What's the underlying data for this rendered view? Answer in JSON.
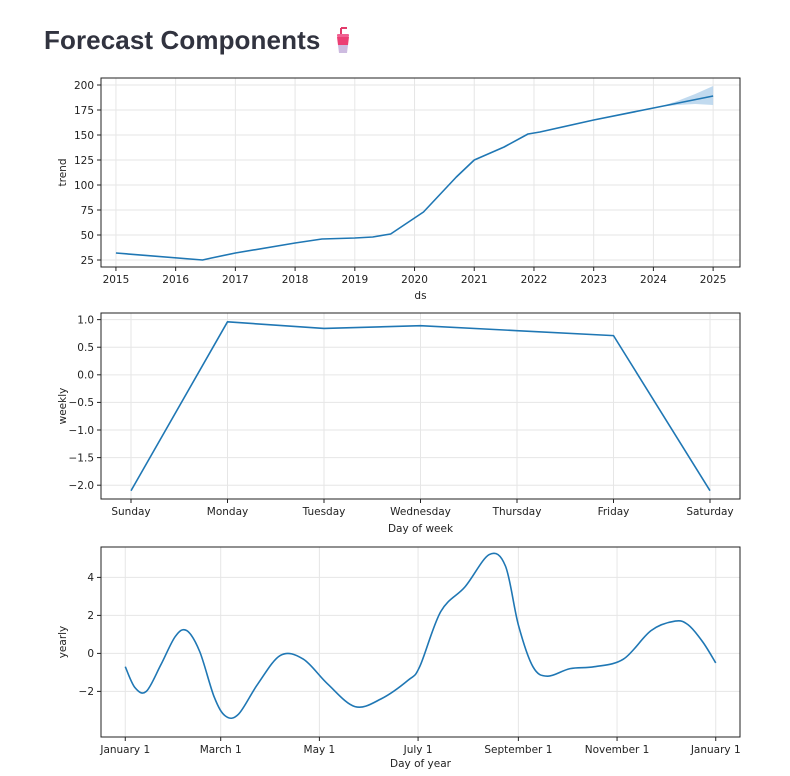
{
  "page": {
    "title": "Forecast Components",
    "icon": "drink-cup-icon"
  },
  "colors": {
    "line": "#1f77b4",
    "band": "#b6d4ec",
    "grid": "#e6e6e6",
    "axis": "#222222",
    "title": "#31333f"
  },
  "chart_data": [
    {
      "type": "line",
      "ylabel": "trend",
      "xlabel": "ds",
      "xlim": [
        2014.75,
        2025.45
      ],
      "ylim": [
        18,
        207
      ],
      "grid": true,
      "xticks": [
        2015,
        2016,
        2017,
        2018,
        2019,
        2020,
        2021,
        2022,
        2023,
        2024,
        2025
      ],
      "xtick_labels": [
        "2015",
        "2016",
        "2017",
        "2018",
        "2019",
        "2020",
        "2021",
        "2022",
        "2023",
        "2024",
        "2025"
      ],
      "yticks": [
        25,
        50,
        75,
        100,
        125,
        150,
        175,
        200
      ],
      "ytick_labels": [
        "25",
        "50",
        "75",
        "100",
        "125",
        "150",
        "175",
        "200"
      ],
      "series": [
        {
          "x": [
            2015.0,
            2016.45,
            2016.6,
            2017.0,
            2018.0,
            2018.45,
            2019.0,
            2019.3,
            2019.6,
            2020.15,
            2020.7,
            2021.0,
            2021.5,
            2021.9,
            2022.1,
            2023.0,
            2024.0,
            2024.5,
            2025.0
          ],
          "y": [
            32,
            25,
            27,
            32,
            42,
            46,
            47,
            48,
            51,
            73,
            108,
            125,
            138,
            151,
            153,
            165,
            177,
            183,
            189
          ]
        }
      ],
      "uncertainty_band": {
        "x": [
          2024.1,
          2024.4,
          2024.7,
          2025.0
        ],
        "lower": [
          178,
          180,
          181,
          180
        ],
        "upper": [
          178,
          184,
          191,
          199
        ]
      }
    },
    {
      "type": "line",
      "ylabel": "weekly",
      "xlabel": "Day of week",
      "ylim": [
        -2.25,
        1.12
      ],
      "grid": true,
      "categories": [
        "Sunday",
        "Monday",
        "Tuesday",
        "Wednesday",
        "Thursday",
        "Friday",
        "Saturday"
      ],
      "yticks": [
        1.0,
        0.5,
        0.0,
        -0.5,
        -1.0,
        -1.5,
        -2.0
      ],
      "ytick_labels": [
        "1.0",
        "0.5",
        "0.0",
        "−0.5",
        "−1.0",
        "−1.5",
        "−2.0"
      ],
      "series": [
        {
          "values": [
            -2.1,
            0.96,
            0.84,
            0.89,
            0.8,
            0.71,
            -2.1
          ]
        }
      ]
    },
    {
      "type": "line",
      "ylabel": "yearly",
      "xlabel": "Day of year",
      "xlim": [
        -15,
        380
      ],
      "ylim": [
        -4.4,
        5.6
      ],
      "grid": true,
      "xticks": [
        0,
        59,
        120,
        181,
        243,
        304,
        365
      ],
      "xtick_labels": [
        "January 1",
        "March 1",
        "May 1",
        "July 1",
        "September 1",
        "November 1",
        "January 1"
      ],
      "yticks": [
        4,
        2,
        0,
        -2
      ],
      "ytick_labels": [
        "4",
        "2",
        "0",
        "−2"
      ],
      "series": [
        {
          "x": [
            0,
            6,
            13,
            22,
            31,
            38,
            46,
            55,
            62,
            70,
            82,
            96,
            110,
            125,
            142,
            158,
            175,
            182,
            195,
            210,
            225,
            235,
            243,
            252,
            261,
            275,
            290,
            308,
            325,
            340,
            348,
            357,
            365
          ],
          "y": [
            -0.7,
            -1.8,
            -2.0,
            -0.6,
            0.9,
            1.2,
            0.1,
            -2.3,
            -3.3,
            -3.2,
            -1.6,
            -0.1,
            -0.3,
            -1.6,
            -2.8,
            -2.4,
            -1.4,
            -0.7,
            2.2,
            3.5,
            5.2,
            4.6,
            1.5,
            -0.7,
            -1.2,
            -0.8,
            -0.7,
            -0.3,
            1.2,
            1.7,
            1.5,
            0.6,
            -0.5
          ]
        }
      ]
    }
  ]
}
